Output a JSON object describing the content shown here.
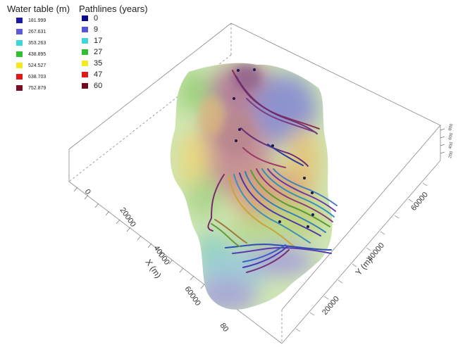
{
  "water_table_legend": {
    "title": "Water table (m)",
    "items": [
      {
        "value": "181.999",
        "color": "#1a1aa8"
      },
      {
        "value": "267.631",
        "color": "#5b5bdc"
      },
      {
        "value": "353.263",
        "color": "#3fd6d8"
      },
      {
        "value": "438.895",
        "color": "#2fc02f"
      },
      {
        "value": "524.527",
        "color": "#f2ea1c"
      },
      {
        "value": "638.703",
        "color": "#e01818"
      },
      {
        "value": "752.879",
        "color": "#7a0c24"
      }
    ]
  },
  "pathlines_legend": {
    "title": "Pathlines (years)",
    "items": [
      {
        "value": "0",
        "color": "#0a0a8a"
      },
      {
        "value": "9",
        "color": "#5555d8"
      },
      {
        "value": "17",
        "color": "#3fd6d8"
      },
      {
        "value": "27",
        "color": "#2fc02f"
      },
      {
        "value": "35",
        "color": "#f2ea1c"
      },
      {
        "value": "47",
        "color": "#e01818"
      },
      {
        "value": "60",
        "color": "#6e0a20"
      }
    ]
  },
  "x_axis": {
    "label": "X (m)",
    "ticks": [
      "0",
      "20000",
      "40000",
      "60000",
      "80"
    ]
  },
  "y_axis": {
    "label": "Y (m)",
    "ticks": [
      "20000",
      "40000",
      "60000"
    ]
  },
  "z_axis": {
    "ticks": [
      "200",
      "400",
      "600",
      "800"
    ]
  }
}
